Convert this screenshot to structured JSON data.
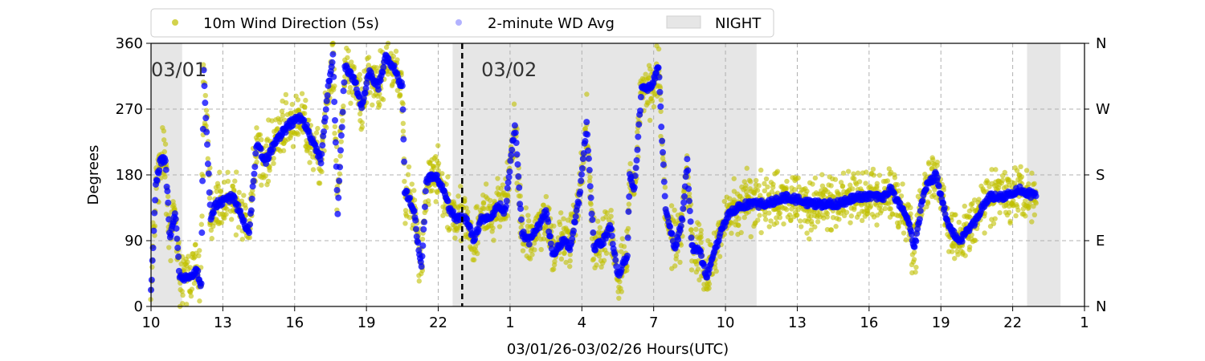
{
  "chart_data": {
    "type": "scatter",
    "xlabel": "03/01/26-03/02/26  Hours(UTC)",
    "ylabel": "Degrees",
    "x_unit": "hours since 03/01 10:00 UTC",
    "xlim": [
      0,
      39
    ],
    "ylim": [
      0,
      360
    ],
    "grid": true,
    "legend_placement": "top-center, above plot",
    "x_tick_values": [
      0,
      3,
      6,
      9,
      12,
      15,
      18,
      21,
      24,
      27,
      30,
      33,
      36,
      39
    ],
    "x_tick_labels": [
      "10",
      "13",
      "16",
      "19",
      "22",
      "1",
      "4",
      "7",
      "10",
      "13",
      "16",
      "19",
      "22",
      "1"
    ],
    "y_tick_values": [
      0,
      90,
      180,
      270,
      360
    ],
    "y_tick_labels": [
      "0",
      "90",
      "180",
      "270",
      "360"
    ],
    "y2_tick_labels": [
      "N",
      "E",
      "S",
      "W",
      "N"
    ],
    "legend": [
      "10m Wind Direction (5s)",
      "2-minute WD Avg",
      "NIGHT"
    ],
    "colors": {
      "wd5s": "#bfbf00",
      "avg": "#0000ff",
      "night": "#e6e6e6"
    },
    "night_spans": [
      [
        0,
        1.3
      ],
      [
        12.6,
        25.3
      ],
      [
        36.6,
        38.0
      ]
    ],
    "midnight_marker": 13.0,
    "date_labels": [
      {
        "x": 0,
        "text": "03/01"
      },
      {
        "x": 13.8,
        "text": "03/02"
      }
    ],
    "series": [
      {
        "name": "2-minute WD Avg (approx. track)",
        "x": [
          0,
          0.2,
          0.4,
          0.6,
          0.8,
          1.0,
          1.2,
          1.6,
          1.9,
          2.1,
          2.2,
          2.5,
          2.7,
          3.4,
          3.7,
          4.1,
          4.4,
          4.8,
          5.3,
          5.8,
          6.3,
          6.8,
          7.1,
          7.4,
          7.6,
          7.8,
          8.1,
          8.5,
          8.8,
          9.1,
          9.5,
          9.8,
          10.1,
          10.5,
          10.6,
          11.0,
          11.1,
          11.3,
          11.5,
          11.8,
          12.1,
          12.5,
          12.8,
          13.2,
          13.5,
          13.8,
          14.2,
          14.5,
          14.8,
          15.2,
          15.5,
          15.8,
          16.2,
          16.5,
          16.8,
          17.2,
          17.5,
          17.9,
          18.2,
          18.5,
          18.9,
          19.2,
          19.5,
          19.9,
          20.0,
          20.2,
          20.5,
          20.9,
          21.2,
          21.5,
          21.9,
          22.2,
          22.4,
          22.6,
          22.9,
          23.2,
          23.6,
          23.9,
          24.2,
          24.9,
          25.6,
          26.6,
          27.6,
          28.6,
          29.6,
          30.6,
          30.9,
          31.6,
          31.9,
          32.3,
          32.8,
          33.3,
          33.8,
          34.3,
          35.0,
          35.6,
          36.3,
          37.0
        ],
        "y": [
          20,
          165,
          200,
          200,
          90,
          130,
          40,
          40,
          50,
          30,
          320,
          120,
          140,
          150,
          130,
          100,
          220,
          200,
          230,
          250,
          260,
          220,
          200,
          300,
          340,
          130,
          330,
          310,
          270,
          320,
          300,
          340,
          330,
          300,
          160,
          130,
          100,
          50,
          170,
          180,
          170,
          130,
          120,
          120,
          90,
          120,
          120,
          140,
          130,
          250,
          100,
          90,
          110,
          130,
          70,
          90,
          80,
          150,
          250,
          80,
          90,
          110,
          40,
          70,
          180,
          160,
          300,
          300,
          330,
          130,
          80,
          120,
          200,
          80,
          80,
          40,
          80,
          110,
          130,
          140,
          140,
          150,
          140,
          140,
          150,
          150,
          160,
          120,
          80,
          160,
          180,
          110,
          90,
          110,
          150,
          150,
          160,
          150
        ]
      },
      {
        "name": "10m Wind Direction (5s)",
        "spread_deg": 30,
        "note": "scattered around the 2-minute average"
      }
    ]
  }
}
